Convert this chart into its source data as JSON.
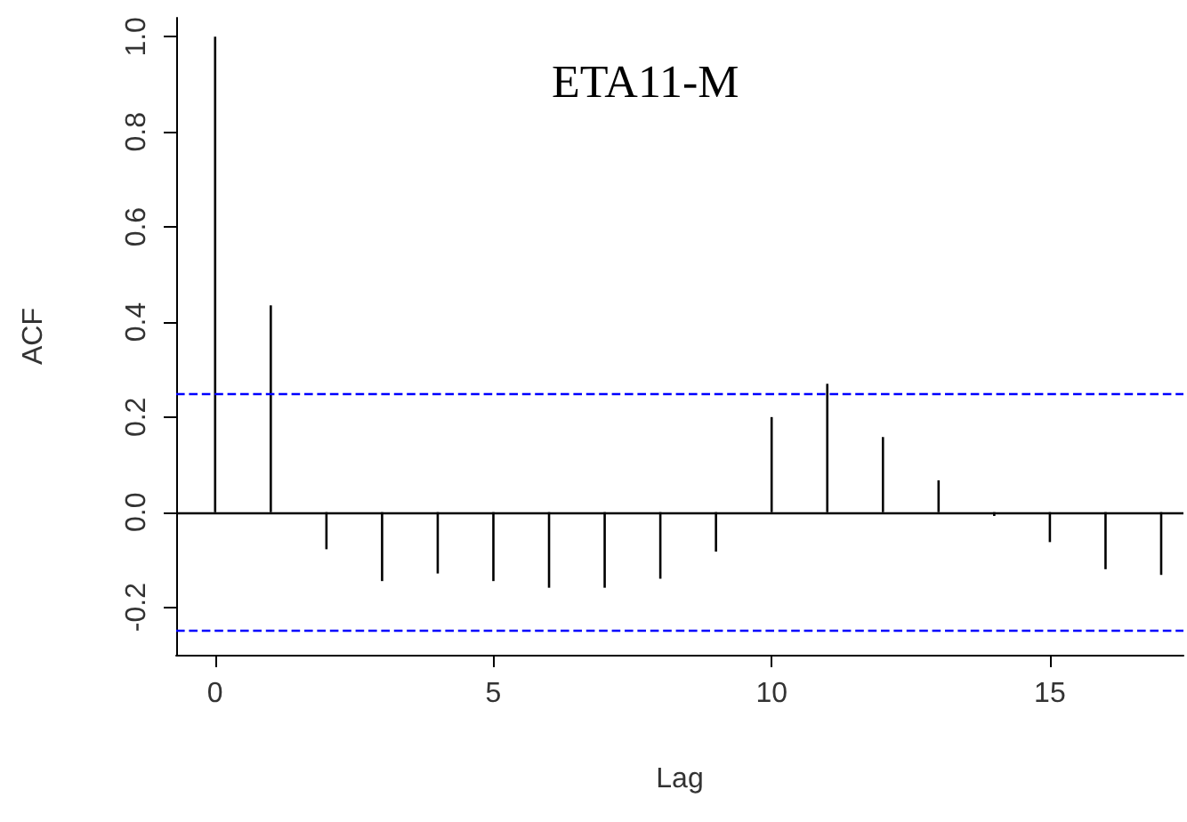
{
  "chart_data": {
    "type": "bar",
    "title": "ETA11-M",
    "xlabel": "Lag",
    "ylabel": "ACF",
    "x": [
      0,
      1,
      2,
      3,
      4,
      5,
      6,
      7,
      8,
      9,
      10,
      11,
      12,
      13,
      14,
      15,
      16,
      17
    ],
    "values": [
      1.0,
      0.435,
      -0.078,
      -0.145,
      -0.129,
      -0.145,
      -0.159,
      -0.159,
      -0.14,
      -0.083,
      0.2,
      0.27,
      0.158,
      0.067,
      -0.008,
      -0.063,
      -0.12,
      -0.132
    ],
    "color": "#000000",
    "xlim": [
      -0.7,
      17.4
    ],
    "xticks": [
      0,
      5,
      10,
      15
    ],
    "ylim": [
      -0.3,
      1.04
    ],
    "yticks": [
      -0.2,
      {
        "value": 0,
        "label": "0.0"
      },
      0.2,
      0.4,
      0.6,
      0.8,
      {
        "value": 1,
        "label": "1.0"
      }
    ],
    "ref_lines": [
      {
        "axis": "y",
        "value": 0.25,
        "label": null,
        "color": "#0000ff",
        "line_style": "dashed"
      },
      {
        "axis": "y",
        "value": -0.25,
        "label": null,
        "color": "#0000ff",
        "line_style": "dashed"
      },
      {
        "axis": "y",
        "value": 0,
        "label": null,
        "color": "#000000",
        "line_style": "solid"
      }
    ],
    "grid": false
  }
}
